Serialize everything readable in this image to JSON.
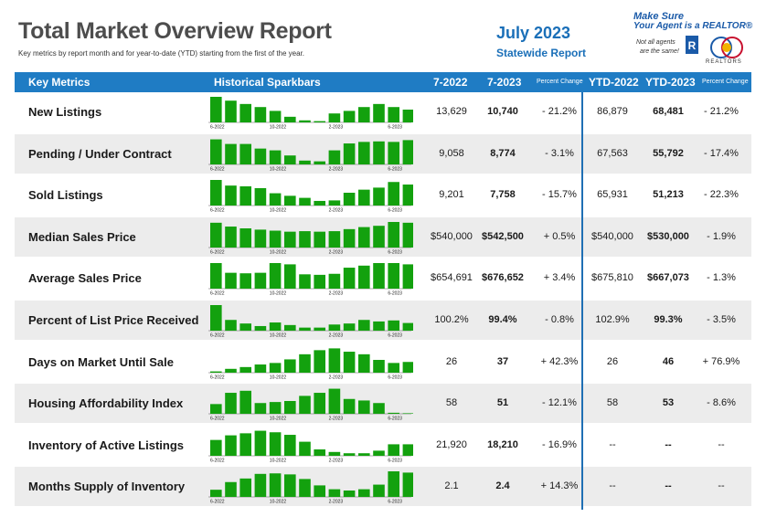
{
  "header": {
    "title": "Total Market Overview Report",
    "subtitle": "Key metrics by report month and for year-to-date (YTD) starting from the first of the year.",
    "month": "July 2023",
    "report_type": "Statewide Report"
  },
  "branding": {
    "line1": "Make Sure",
    "line2": "Your Agent is a REALTOR®",
    "note1": "Not all agents",
    "note2": "are the same!",
    "logo_text": "REALTORS",
    "colors": {
      "realtor_blue": "#1a5aa8",
      "logo_red": "#c8102e"
    }
  },
  "table": {
    "columns": {
      "metric": "Key Metrics",
      "spark": "Historical Sparkbars",
      "prev": "7-2022",
      "curr": "7-2023",
      "pct": "Percent Change",
      "ytd_prev": "YTD-2022",
      "ytd_curr": "YTD-2023",
      "ytd_pct": "Percent Change"
    },
    "colors": {
      "header_bg": "#1f7cc4",
      "bar": "#13a10e",
      "row_alt": "#ececec"
    },
    "rows": [
      {
        "metric": "New Listings",
        "prev": "13,629",
        "curr": "10,740",
        "pct": "- 21.2%",
        "ytd_prev": "86,879",
        "ytd_curr": "68,481",
        "ytd_pct": "- 21.2%",
        "spark_labels": [
          "6-2022",
          "10-2022",
          "2-2023",
          "6-2023"
        ],
        "bars": [
          1.0,
          0.85,
          0.72,
          0.6,
          0.45,
          0.22,
          0.08,
          0.05,
          0.35,
          0.45,
          0.6,
          0.72,
          0.6,
          0.5
        ]
      },
      {
        "metric": "Pending / Under Contract",
        "prev": "9,058",
        "curr": "8,774",
        "pct": "- 3.1%",
        "ytd_prev": "67,563",
        "ytd_curr": "55,792",
        "ytd_pct": "- 17.4%",
        "spark_labels": [
          "6-2022",
          "10-2022",
          "2-2023",
          "6-2023"
        ],
        "bars": [
          0.98,
          0.8,
          0.8,
          0.62,
          0.55,
          0.35,
          0.15,
          0.12,
          0.55,
          0.82,
          0.88,
          0.9,
          0.88,
          0.95
        ]
      },
      {
        "metric": "Sold Listings",
        "prev": "9,201",
        "curr": "7,758",
        "pct": "- 15.7%",
        "ytd_prev": "65,931",
        "ytd_curr": "51,213",
        "ytd_pct": "- 22.3%",
        "spark_labels": [
          "6-2022",
          "10-2022",
          "2-2023",
          "6-2023"
        ],
        "bars": [
          1.0,
          0.78,
          0.75,
          0.68,
          0.48,
          0.38,
          0.3,
          0.18,
          0.2,
          0.5,
          0.62,
          0.7,
          0.92,
          0.82
        ]
      },
      {
        "metric": "Median Sales Price",
        "prev": "$540,000",
        "curr": "$542,500",
        "pct": "+ 0.5%",
        "ytd_prev": "$540,000",
        "ytd_curr": "$530,000",
        "ytd_pct": "- 1.9%",
        "spark_labels": [
          "6-2022",
          "10-2022",
          "2-2023",
          "6-2023"
        ],
        "bars": [
          0.97,
          0.82,
          0.75,
          0.7,
          0.66,
          0.62,
          0.64,
          0.62,
          0.64,
          0.72,
          0.8,
          0.85,
          1.0,
          0.97
        ]
      },
      {
        "metric": "Average Sales Price",
        "prev": "$654,691",
        "curr": "$676,652",
        "pct": "+ 3.4%",
        "ytd_prev": "$675,810",
        "ytd_curr": "$667,073",
        "ytd_pct": "- 1.3%",
        "spark_labels": [
          "6-2022",
          "10-2022",
          "2-2023",
          "6-2023"
        ],
        "bars": [
          1.0,
          0.62,
          0.6,
          0.62,
          1.0,
          0.95,
          0.56,
          0.54,
          0.58,
          0.82,
          0.9,
          1.0,
          1.0,
          0.95
        ]
      },
      {
        "metric": "Percent of List Price Received",
        "prev": "100.2%",
        "curr": "99.4%",
        "pct": "- 0.8%",
        "ytd_prev": "102.9%",
        "ytd_curr": "99.3%",
        "ytd_pct": "- 3.5%",
        "spark_labels": [
          "6-2022",
          "10-2022",
          "2-2023",
          "6-2023"
        ],
        "bars": [
          1.0,
          0.42,
          0.28,
          0.18,
          0.32,
          0.22,
          0.12,
          0.12,
          0.24,
          0.28,
          0.42,
          0.36,
          0.4,
          0.3
        ]
      },
      {
        "metric": "Days on Market Until Sale",
        "prev": "26",
        "curr": "37",
        "pct": "+ 42.3%",
        "ytd_prev": "26",
        "ytd_curr": "46",
        "ytd_pct": "+ 76.9%",
        "spark_labels": [
          "6-2022",
          "10-2022",
          "2-2023",
          "6-2023"
        ],
        "bars": [
          0.05,
          0.15,
          0.22,
          0.32,
          0.38,
          0.52,
          0.72,
          0.88,
          0.95,
          0.82,
          0.72,
          0.5,
          0.38,
          0.42
        ]
      },
      {
        "metric": "Housing Affordability Index",
        "prev": "58",
        "curr": "51",
        "pct": "- 12.1%",
        "ytd_prev": "58",
        "ytd_curr": "53",
        "ytd_pct": "- 8.6%",
        "spark_labels": [
          "6-2022",
          "10-2022",
          "2-2023",
          "6-2023"
        ],
        "bars": [
          0.38,
          0.82,
          0.9,
          0.42,
          0.46,
          0.5,
          0.7,
          0.82,
          0.98,
          0.58,
          0.52,
          0.42,
          0.04,
          0.02
        ]
      },
      {
        "metric": "Inventory of Active Listings",
        "prev": "21,920",
        "curr": "18,210",
        "pct": "- 16.9%",
        "ytd_prev": "--",
        "ytd_curr": "--",
        "ytd_pct": "--",
        "spark_labels": [
          "6-2022",
          "10-2022",
          "2-2023",
          "6-2023"
        ],
        "bars": [
          0.62,
          0.8,
          0.88,
          0.98,
          0.92,
          0.82,
          0.55,
          0.25,
          0.15,
          0.1,
          0.1,
          0.2,
          0.45,
          0.45
        ]
      },
      {
        "metric": "Months Supply of Inventory",
        "prev": "2.1",
        "curr": "2.4",
        "pct": "+ 14.3%",
        "ytd_prev": "--",
        "ytd_curr": "--",
        "ytd_pct": "--",
        "spark_labels": [
          "6-2022",
          "10-2022",
          "2-2023",
          "6-2023"
        ],
        "bars": [
          0.28,
          0.58,
          0.72,
          0.9,
          0.92,
          0.88,
          0.7,
          0.45,
          0.3,
          0.25,
          0.3,
          0.48,
          1.0,
          0.95
        ]
      }
    ]
  }
}
